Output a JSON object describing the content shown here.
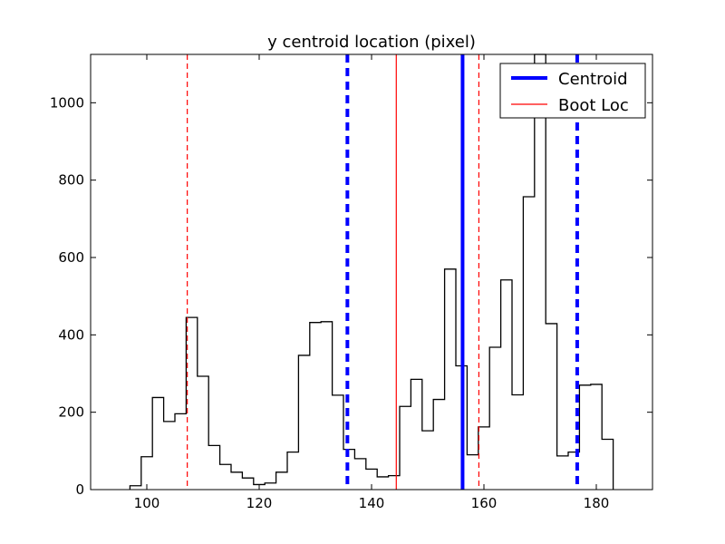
{
  "chart_data": {
    "type": "histogram",
    "title": "y centroid location (pixel)",
    "xlabel": "",
    "ylabel": "",
    "xlim": [
      90,
      190
    ],
    "ylim": [
      0,
      1125
    ],
    "x_ticks": [
      100,
      120,
      140,
      160,
      180
    ],
    "y_ticks": [
      0,
      200,
      400,
      600,
      800,
      1000
    ],
    "grid": false,
    "legend_position": "top-right",
    "histogram": {
      "name": "distribution",
      "color": "#000000",
      "bin_edges": [
        97,
        98,
        99,
        100,
        101,
        102,
        103,
        104,
        105,
        106,
        107,
        108,
        109,
        110,
        111,
        112,
        113,
        114,
        115,
        116,
        117,
        118,
        119,
        120,
        121,
        122,
        123,
        124,
        125,
        126,
        127,
        128,
        129,
        130,
        131,
        132,
        133,
        134,
        135,
        136,
        137,
        138,
        139,
        140,
        141,
        142,
        143,
        144,
        145,
        146,
        147,
        148,
        149,
        150,
        151,
        152,
        153,
        154,
        155,
        156,
        157,
        158,
        159,
        160,
        161,
        162,
        163,
        164,
        165,
        166,
        167,
        168,
        169,
        170,
        171,
        172,
        173,
        174,
        175,
        176,
        177,
        178,
        179,
        180,
        181,
        182,
        183
      ],
      "counts": [
        10,
        10,
        85,
        85,
        238,
        238,
        176,
        176,
        196,
        196,
        445,
        445,
        293,
        293,
        114,
        114,
        65,
        65,
        45,
        45,
        30,
        30,
        13,
        13,
        17,
        17,
        45,
        45,
        97,
        97,
        347,
        347,
        432,
        432,
        434,
        434,
        244,
        244,
        104,
        104,
        80,
        80,
        53,
        53,
        33,
        33,
        36,
        36,
        215,
        215,
        285,
        285,
        152,
        152,
        233,
        233,
        570,
        570,
        320,
        320,
        90,
        90,
        162,
        162,
        368,
        368,
        542,
        542,
        245,
        245,
        757,
        757,
        1125,
        1125,
        429,
        429,
        87,
        87,
        97,
        97,
        270,
        270,
        272,
        272,
        130,
        130
      ]
    },
    "vertical_lines": [
      {
        "series": "Centroid",
        "x": 156.2,
        "style": "solid",
        "color": "#0000ff",
        "width": 4
      },
      {
        "series": "Centroid",
        "x": 135.7,
        "style": "dashed",
        "color": "#0000ff",
        "width": 4
      },
      {
        "series": "Centroid",
        "x": 176.6,
        "style": "dashed",
        "color": "#0000ff",
        "width": 4
      },
      {
        "series": "Boot Loc",
        "x": 144.4,
        "style": "solid",
        "color": "#ff0000",
        "width": 1.2
      },
      {
        "series": "Boot Loc",
        "x": 107.2,
        "style": "dashed",
        "color": "#ff0000",
        "width": 1.2
      },
      {
        "series": "Boot Loc",
        "x": 159.1,
        "style": "dashed",
        "color": "#ff0000",
        "width": 1.2
      }
    ],
    "legend": [
      {
        "label": "Centroid",
        "color": "#0000ff",
        "width": 4
      },
      {
        "label": "Boot Loc",
        "color": "#ff0000",
        "width": 1.2
      }
    ]
  }
}
